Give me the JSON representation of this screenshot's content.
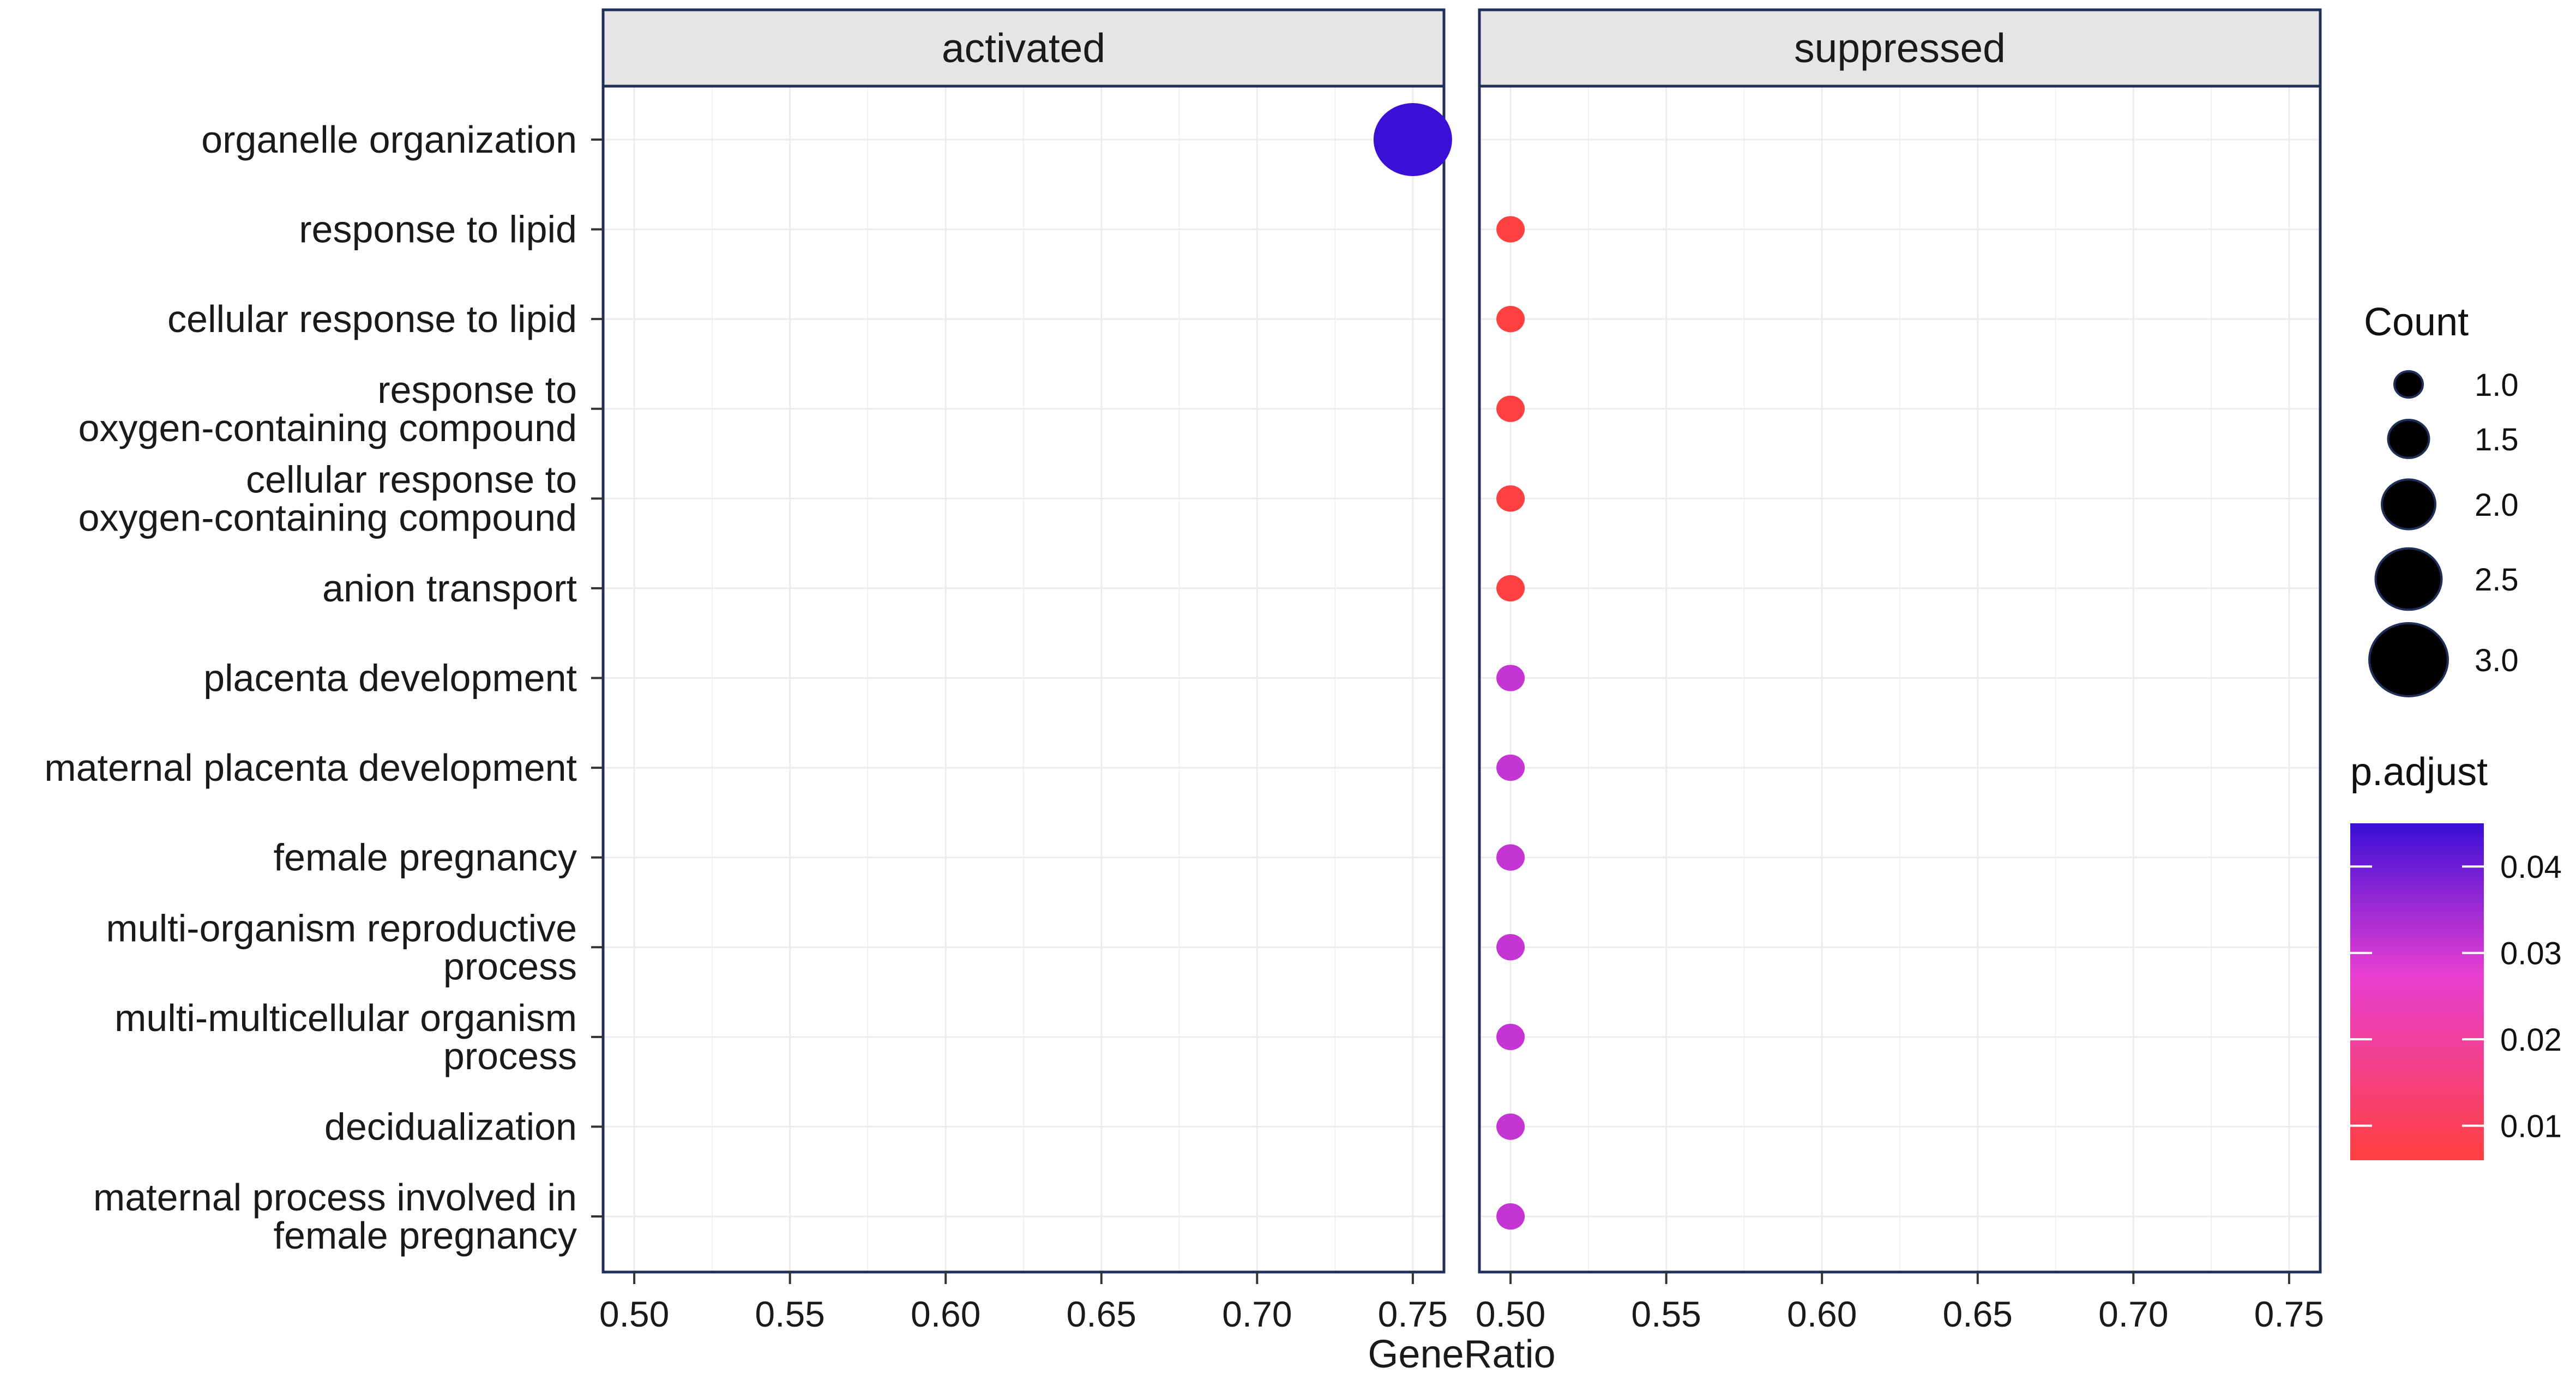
{
  "chart_data": {
    "type": "scatter",
    "xlabel": "GeneRatio",
    "xlim": [
      0.49,
      0.76
    ],
    "xticks": [
      0.5,
      0.55,
      0.6,
      0.65,
      0.7,
      0.75
    ],
    "xtick_labels": [
      "0.50",
      "0.55",
      "0.60",
      "0.65",
      "0.70",
      "0.75"
    ],
    "facets": [
      "activated",
      "suppressed"
    ],
    "categories": [
      [
        "organelle organization"
      ],
      [
        "response to lipid"
      ],
      [
        "cellular response to lipid"
      ],
      [
        "response to",
        "oxygen-containing compound"
      ],
      [
        "cellular response to",
        "oxygen-containing compound"
      ],
      [
        "anion transport"
      ],
      [
        "placenta development"
      ],
      [
        "maternal placenta development"
      ],
      [
        "female pregnancy"
      ],
      [
        "multi-organism reproductive",
        "process"
      ],
      [
        "multi-multicellular organism",
        "process"
      ],
      [
        "decidualization"
      ],
      [
        "maternal process involved in",
        "female pregnancy"
      ]
    ],
    "points": [
      {
        "facet": "activated",
        "category": 0,
        "x": 0.75,
        "count": 3,
        "p_adjust": 0.045
      },
      {
        "facet": "suppressed",
        "category": 1,
        "x": 0.5,
        "count": 1,
        "p_adjust": 0.006
      },
      {
        "facet": "suppressed",
        "category": 2,
        "x": 0.5,
        "count": 1,
        "p_adjust": 0.006
      },
      {
        "facet": "suppressed",
        "category": 3,
        "x": 0.5,
        "count": 1,
        "p_adjust": 0.006
      },
      {
        "facet": "suppressed",
        "category": 4,
        "x": 0.5,
        "count": 1,
        "p_adjust": 0.006
      },
      {
        "facet": "suppressed",
        "category": 5,
        "x": 0.5,
        "count": 1,
        "p_adjust": 0.006
      },
      {
        "facet": "suppressed",
        "category": 6,
        "x": 0.5,
        "count": 1,
        "p_adjust": 0.031
      },
      {
        "facet": "suppressed",
        "category": 7,
        "x": 0.5,
        "count": 1,
        "p_adjust": 0.031
      },
      {
        "facet": "suppressed",
        "category": 8,
        "x": 0.5,
        "count": 1,
        "p_adjust": 0.031
      },
      {
        "facet": "suppressed",
        "category": 9,
        "x": 0.5,
        "count": 1,
        "p_adjust": 0.031
      },
      {
        "facet": "suppressed",
        "category": 10,
        "x": 0.5,
        "count": 1,
        "p_adjust": 0.031
      },
      {
        "facet": "suppressed",
        "category": 11,
        "x": 0.5,
        "count": 1,
        "p_adjust": 0.031
      },
      {
        "facet": "suppressed",
        "category": 12,
        "x": 0.5,
        "count": 1,
        "p_adjust": 0.031
      }
    ],
    "size_legend": {
      "title": "Count",
      "values": [
        1.0,
        1.5,
        2.0,
        2.5,
        3.0
      ],
      "labels": [
        "1.0",
        "1.5",
        "2.0",
        "2.5",
        "3.0"
      ]
    },
    "color_legend": {
      "title": "p.adjust",
      "range": [
        0.006,
        0.045
      ],
      "ticks": [
        0.01,
        0.02,
        0.03,
        0.04
      ],
      "tick_labels": [
        "0.01",
        "0.02",
        "0.03",
        "0.04"
      ],
      "low_color": "#ff4040",
      "mid_color": "#e83fd2",
      "high_color": "#3b0fd6"
    },
    "grid": true
  },
  "colors": {
    "panel_border": "#1f2f5a",
    "strip_fill": "#e5e5e5",
    "grid": "#ececec"
  }
}
